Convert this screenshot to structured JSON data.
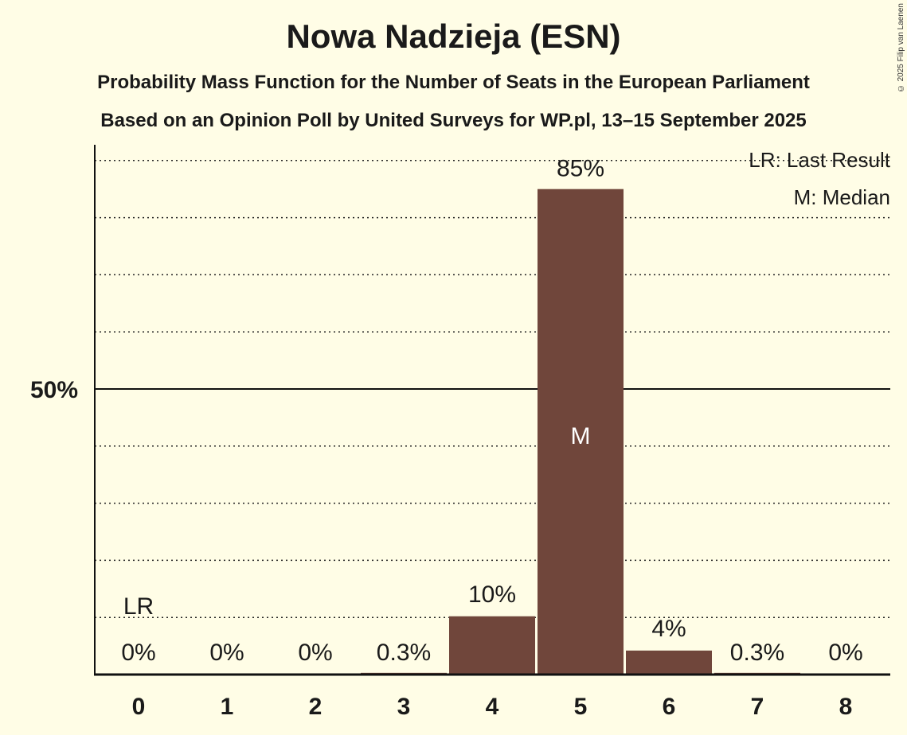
{
  "title": "Nowa Nadzieja (ESN)",
  "subtitle1": "Probability Mass Function for the Number of Seats in the European Parliament",
  "subtitle2": "Based on an Opinion Poll by United Surveys for WP.pl, 13–15 September 2025",
  "copyright": "© 2025 Filip van Laenen",
  "colors": {
    "bar": "#70463b",
    "background": "#fffde6"
  },
  "chart_data": {
    "type": "bar",
    "categories": [
      "0",
      "1",
      "2",
      "3",
      "4",
      "5",
      "6",
      "7",
      "8"
    ],
    "values": [
      0,
      0,
      0,
      0.3,
      10.2,
      85,
      4.2,
      0.3,
      0
    ],
    "data_labels": [
      "0%",
      "0%",
      "0%",
      "0.3%",
      "10%",
      "85%",
      "4%",
      "0.3%",
      "0%"
    ],
    "ylim": [
      0,
      100
    ],
    "yticks": [
      {
        "value": 50,
        "label": "50%"
      }
    ],
    "grid": "dotted every 10%",
    "last_result": {
      "category": "0",
      "label": "LR"
    },
    "median": {
      "category": "5",
      "label": "M"
    },
    "legend": [
      "LR: Last Result",
      "M: Median"
    ],
    "legend_position": "top-right"
  }
}
